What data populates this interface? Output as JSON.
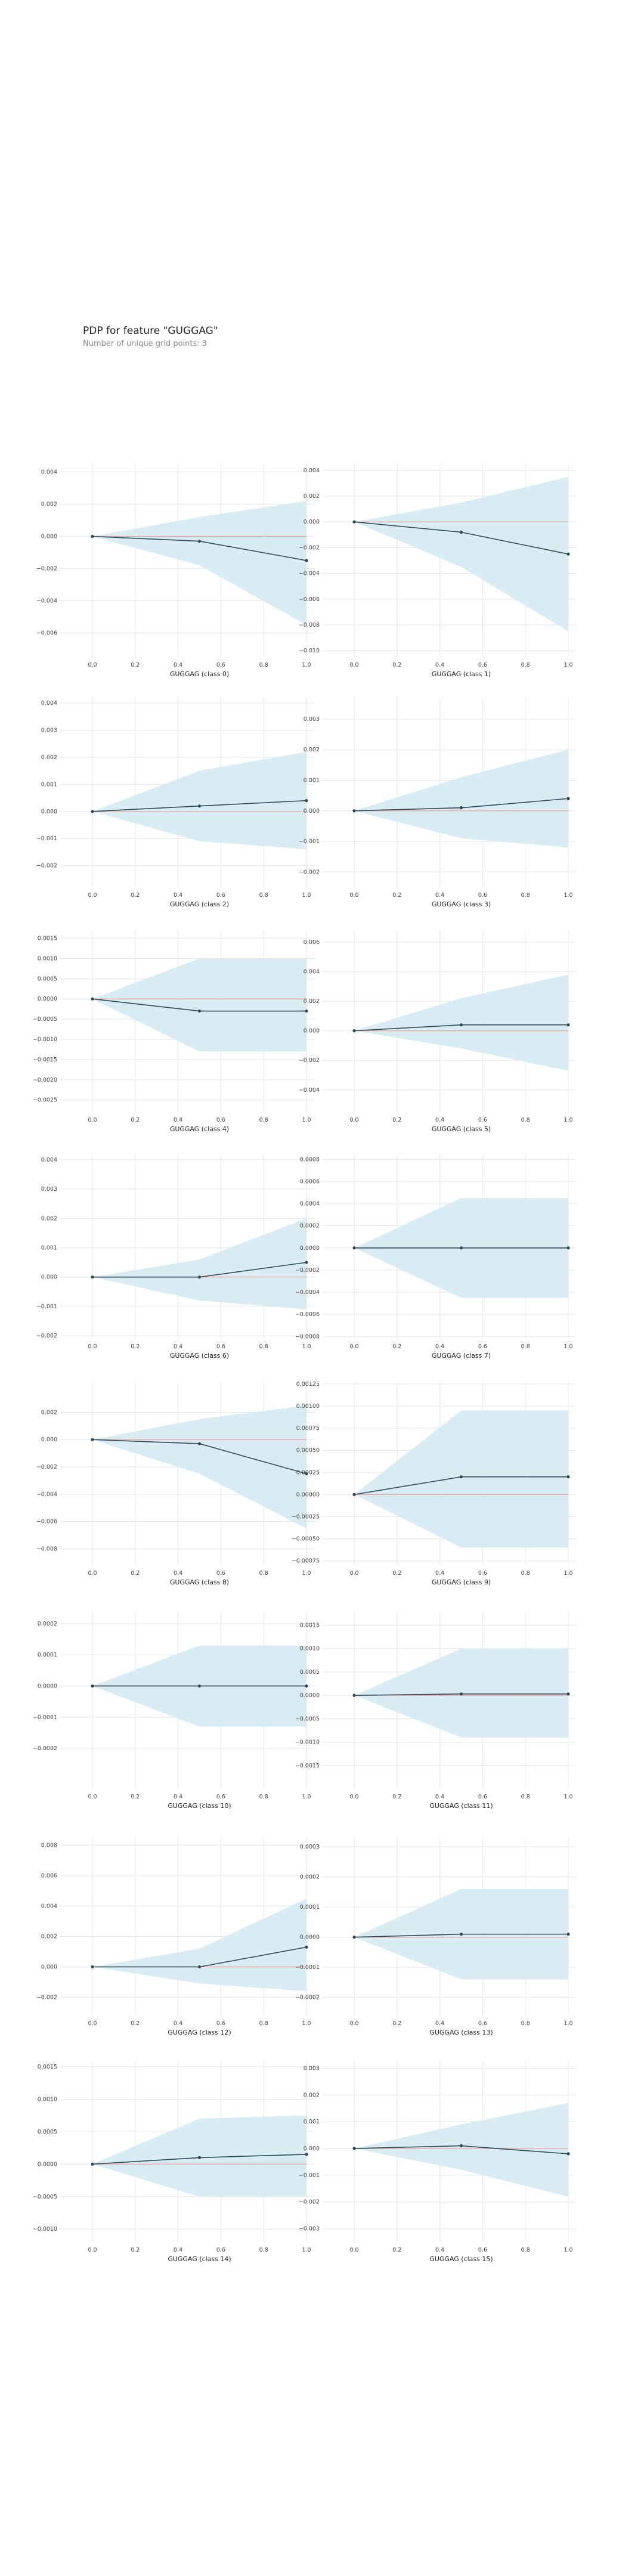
{
  "header": {
    "title": "PDP for feature \"GUGGAG\"",
    "subtitle": "Number of unique grid points: 3"
  },
  "colors": {
    "band": "#d5eaf2",
    "line": "#2e4a57",
    "zero": "#e8a59a",
    "grid": "#e6e6e6"
  },
  "chart_data": [
    {
      "type": "line",
      "xlabel": "GUGGAG (class 0)",
      "ylim": [
        -0.0075,
        0.0045
      ],
      "yticks": [
        0.004,
        0.002,
        0.0,
        -0.002,
        -0.004,
        -0.006
      ],
      "yticklabels": [
        "0.004",
        "0.002",
        "0.000",
        "−0.002",
        "−0.004",
        "−0.006"
      ],
      "xticks": [
        0.0,
        0.2,
        0.4,
        0.6,
        0.8,
        1.0
      ],
      "xticklabels": [
        "0.0",
        "0.2",
        "0.4",
        "0.6",
        "0.8",
        "1.0"
      ],
      "x": [
        0.0,
        0.5,
        1.0
      ],
      "y": [
        0.0,
        -0.0003,
        -0.0015
      ],
      "upper": [
        0.0,
        0.0012,
        0.0022
      ],
      "lower": [
        0.0,
        -0.0018,
        -0.0055
      ]
    },
    {
      "type": "line",
      "xlabel": "GUGGAG (class 1)",
      "ylim": [
        -0.0105,
        0.0045
      ],
      "yticks": [
        0.004,
        0.002,
        0.0,
        -0.002,
        -0.004,
        -0.006,
        -0.008,
        -0.01
      ],
      "yticklabels": [
        "0.004",
        "0.002",
        "0.000",
        "−0.002",
        "−0.004",
        "−0.006",
        "−0.008",
        "−0.010"
      ],
      "xticks": [
        0.0,
        0.2,
        0.4,
        0.6,
        0.8,
        1.0
      ],
      "xticklabels": [
        "0.0",
        "0.2",
        "0.4",
        "0.6",
        "0.8",
        "1.0"
      ],
      "x": [
        0.0,
        0.5,
        1.0
      ],
      "y": [
        0.0,
        -0.0008,
        -0.0025
      ],
      "upper": [
        0.0,
        0.0015,
        0.0035
      ],
      "lower": [
        0.0,
        -0.0035,
        -0.0085
      ]
    },
    {
      "type": "line",
      "xlabel": "GUGGAG (class 2)",
      "ylim": [
        -0.0028,
        0.0042
      ],
      "yticks": [
        0.004,
        0.003,
        0.002,
        0.001,
        0.0,
        -0.001,
        -0.002
      ],
      "yticklabels": [
        "0.004",
        "0.003",
        "0.002",
        "0.001",
        "0.000",
        "−0.001",
        "−0.002"
      ],
      "xticks": [
        0.0,
        0.2,
        0.4,
        0.6,
        0.8,
        1.0
      ],
      "xticklabels": [
        "0.0",
        "0.2",
        "0.4",
        "0.6",
        "0.8",
        "1.0"
      ],
      "x": [
        0.0,
        0.5,
        1.0
      ],
      "y": [
        0.0,
        0.0002,
        0.0004
      ],
      "upper": [
        0.0,
        0.0015,
        0.0022
      ],
      "lower": [
        0.0,
        -0.0011,
        -0.0014
      ]
    },
    {
      "type": "line",
      "xlabel": "GUGGAG (class 3)",
      "ylim": [
        -0.0025,
        0.0037
      ],
      "yticks": [
        0.003,
        0.002,
        0.001,
        0.0,
        -0.001,
        -0.002
      ],
      "yticklabels": [
        "0.003",
        "0.002",
        "0.001",
        "0.000",
        "−0.001",
        "−0.002"
      ],
      "xticks": [
        0.0,
        0.2,
        0.4,
        0.6,
        0.8,
        1.0
      ],
      "xticklabels": [
        "0.0",
        "0.2",
        "0.4",
        "0.6",
        "0.8",
        "1.0"
      ],
      "x": [
        0.0,
        0.5,
        1.0
      ],
      "y": [
        0.0,
        0.0001,
        0.0004
      ],
      "upper": [
        0.0,
        0.0011,
        0.002
      ],
      "lower": [
        0.0,
        -0.0009,
        -0.0012
      ]
    },
    {
      "type": "line",
      "xlabel": "GUGGAG (class 4)",
      "ylim": [
        -0.0028,
        0.0017
      ],
      "yticks": [
        0.0015,
        0.001,
        0.0005,
        0.0,
        -0.0005,
        -0.001,
        -0.0015,
        -0.002,
        -0.0025
      ],
      "yticklabels": [
        "0.0015",
        "0.0010",
        "0.0005",
        "0.0000",
        "−0.0005",
        "−0.0010",
        "−0.0015",
        "−0.0020",
        "−0.0025"
      ],
      "xticks": [
        0.0,
        0.2,
        0.4,
        0.6,
        0.8,
        1.0
      ],
      "xticklabels": [
        "0.0",
        "0.2",
        "0.4",
        "0.6",
        "0.8",
        "1.0"
      ],
      "x": [
        0.0,
        0.5,
        1.0
      ],
      "y": [
        0.0,
        -0.0003,
        -0.0003
      ],
      "upper": [
        0.0,
        0.001,
        0.001
      ],
      "lower": [
        0.0,
        -0.0013,
        -0.0013
      ]
    },
    {
      "type": "line",
      "xlabel": "GUGGAG (class 5)",
      "ylim": [
        -0.0055,
        0.0068
      ],
      "yticks": [
        0.006,
        0.004,
        0.002,
        0.0,
        -0.002,
        -0.004
      ],
      "yticklabels": [
        "0.006",
        "0.004",
        "0.002",
        "0.000",
        "−0.002",
        "−0.004"
      ],
      "xticks": [
        0.0,
        0.2,
        0.4,
        0.6,
        0.8,
        1.0
      ],
      "xticklabels": [
        "0.0",
        "0.2",
        "0.4",
        "0.6",
        "0.8",
        "1.0"
      ],
      "x": [
        0.0,
        0.5,
        1.0
      ],
      "y": [
        0.0,
        0.0004,
        0.0004
      ],
      "upper": [
        0.0,
        0.0022,
        0.0038
      ],
      "lower": [
        0.0,
        -0.0012,
        -0.0027
      ]
    },
    {
      "type": "line",
      "xlabel": "GUGGAG (class 6)",
      "ylim": [
        -0.0021,
        0.0042
      ],
      "yticks": [
        0.004,
        0.003,
        0.002,
        0.001,
        0.0,
        -0.001,
        -0.002
      ],
      "yticklabels": [
        "0.004",
        "0.003",
        "0.002",
        "0.001",
        "0.000",
        "−0.001",
        "−0.002"
      ],
      "xticks": [
        0.0,
        0.2,
        0.4,
        0.6,
        0.8,
        1.0
      ],
      "xticklabels": [
        "0.0",
        "0.2",
        "0.4",
        "0.6",
        "0.8",
        "1.0"
      ],
      "x": [
        0.0,
        0.5,
        1.0
      ],
      "y": [
        0.0,
        0.0,
        0.0005
      ],
      "upper": [
        0.0,
        0.0006,
        0.002
      ],
      "lower": [
        0.0,
        -0.0008,
        -0.0011
      ]
    },
    {
      "type": "line",
      "xlabel": "GUGGAG (class 7)",
      "ylim": [
        -0.00082,
        0.00085
      ],
      "yticks": [
        0.0008,
        0.0006,
        0.0004,
        0.0002,
        0.0,
        -0.0002,
        -0.0004,
        -0.0006,
        -0.0008
      ],
      "yticklabels": [
        "0.0008",
        "0.0006",
        "0.0004",
        "0.0002",
        "0.0000",
        "−0.0002",
        "−0.0004",
        "−0.0006",
        "−0.0008"
      ],
      "xticks": [
        0.0,
        0.2,
        0.4,
        0.6,
        0.8,
        1.0
      ],
      "xticklabels": [
        "0.0",
        "0.2",
        "0.4",
        "0.6",
        "0.8",
        "1.0"
      ],
      "x": [
        0.0,
        0.5,
        1.0
      ],
      "y": [
        0.0,
        0.0,
        0.0
      ],
      "upper": [
        0.0,
        0.00045,
        0.00045
      ],
      "lower": [
        0.0,
        -0.00045,
        -0.00045
      ]
    },
    {
      "type": "line",
      "xlabel": "GUGGAG (class 8)",
      "ylim": [
        -0.0092,
        0.0042
      ],
      "yticks": [
        0.002,
        0.0,
        -0.002,
        -0.004,
        -0.006,
        -0.008
      ],
      "yticklabels": [
        "0.002",
        "0.000",
        "−0.002",
        "−0.004",
        "−0.006",
        "−0.008"
      ],
      "xticks": [
        0.0,
        0.2,
        0.4,
        0.6,
        0.8,
        1.0
      ],
      "xticklabels": [
        "0.0",
        "0.2",
        "0.4",
        "0.6",
        "0.8",
        "1.0"
      ],
      "x": [
        0.0,
        0.5,
        1.0
      ],
      "y": [
        0.0,
        -0.0003,
        -0.0025
      ],
      "upper": [
        0.0,
        0.0015,
        0.0025
      ],
      "lower": [
        0.0,
        -0.0025,
        -0.0065
      ]
    },
    {
      "type": "line",
      "xlabel": "GUGGAG (class 9)",
      "ylim": [
        -0.0008,
        0.00127
      ],
      "yticks": [
        0.00125,
        0.001,
        0.00075,
        0.0005,
        0.00025,
        0.0,
        -0.00025,
        -0.0005,
        -0.00075
      ],
      "yticklabels": [
        "0.00125",
        "0.00100",
        "0.00075",
        "0.00050",
        "0.00025",
        "0.00000",
        "−0.00025",
        "−0.00050",
        "−0.00075"
      ],
      "xticks": [
        0.0,
        0.2,
        0.4,
        0.6,
        0.8,
        1.0
      ],
      "xticklabels": [
        "0.0",
        "0.2",
        "0.4",
        "0.6",
        "0.8",
        "1.0"
      ],
      "x": [
        0.0,
        0.5,
        1.0
      ],
      "y": [
        0.0,
        0.0002,
        0.0002
      ],
      "upper": [
        0.0,
        0.00095,
        0.00095
      ],
      "lower": [
        0.0,
        -0.0006,
        -0.0006
      ]
    },
    {
      "type": "line",
      "xlabel": "GUGGAG (class 10)",
      "ylim": [
        -0.00033,
        0.00024
      ],
      "yticks": [
        0.0002,
        0.0001,
        0.0,
        -0.0001,
        -0.0002
      ],
      "yticklabels": [
        "0.0002",
        "0.0001",
        "0.0000",
        "−0.0001",
        "−0.0002"
      ],
      "xticks": [
        0.0,
        0.2,
        0.4,
        0.6,
        0.8,
        1.0
      ],
      "xticklabels": [
        "0.0",
        "0.2",
        "0.4",
        "0.6",
        "0.8",
        "1.0"
      ],
      "x": [
        0.0,
        0.5,
        1.0
      ],
      "y": [
        0.0,
        0.0,
        0.0
      ],
      "upper": [
        0.0,
        0.00013,
        0.00013
      ],
      "lower": [
        0.0,
        -0.00013,
        -0.00013
      ]
    },
    {
      "type": "line",
      "xlabel": "GUGGAG (class 11)",
      "ylim": [
        -0.002,
        0.0018
      ],
      "yticks": [
        0.0015,
        0.001,
        0.0005,
        0.0,
        -0.0005,
        -0.001,
        -0.0015
      ],
      "yticklabels": [
        "0.0015",
        "0.0010",
        "0.0005",
        "0.0000",
        "−0.0005",
        "−0.0010",
        "−0.0015"
      ],
      "xticks": [
        0.0,
        0.2,
        0.4,
        0.6,
        0.8,
        1.0
      ],
      "xticklabels": [
        "0.0",
        "0.2",
        "0.4",
        "0.6",
        "0.8",
        "1.0"
      ],
      "x": [
        0.0,
        0.5,
        1.0
      ],
      "y": [
        0.0,
        3e-05,
        3e-05
      ],
      "upper": [
        0.0,
        0.001,
        0.001
      ],
      "lower": [
        0.0,
        -0.0009,
        -0.0009
      ]
    },
    {
      "type": "line",
      "xlabel": "GUGGAG (class 12)",
      "ylim": [
        -0.0032,
        0.0085
      ],
      "yticks": [
        0.008,
        0.006,
        0.004,
        0.002,
        0.0,
        -0.002
      ],
      "yticklabels": [
        "0.008",
        "0.006",
        "0.004",
        "0.002",
        "0.000",
        "−0.002"
      ],
      "xticks": [
        0.0,
        0.2,
        0.4,
        0.6,
        0.8,
        1.0
      ],
      "xticklabels": [
        "0.0",
        "0.2",
        "0.4",
        "0.6",
        "0.8",
        "1.0"
      ],
      "x": [
        0.0,
        0.5,
        1.0
      ],
      "y": [
        0.0,
        0.0,
        0.0013
      ],
      "upper": [
        0.0,
        0.0012,
        0.0045
      ],
      "lower": [
        0.0,
        -0.0011,
        -0.0016
      ]
    },
    {
      "type": "line",
      "xlabel": "GUGGAG (class 13)",
      "ylim": [
        -0.00026,
        0.00033
      ],
      "yticks": [
        0.0003,
        0.0002,
        0.0001,
        0.0,
        -0.0001,
        -0.0002
      ],
      "yticklabels": [
        "0.0003",
        "0.0002",
        "0.0001",
        "0.0000",
        "−0.0001",
        "−0.0002"
      ],
      "xticks": [
        0.0,
        0.2,
        0.4,
        0.6,
        0.8,
        1.0
      ],
      "xticklabels": [
        "0.0",
        "0.2",
        "0.4",
        "0.6",
        "0.8",
        "1.0"
      ],
      "x": [
        0.0,
        0.5,
        1.0
      ],
      "y": [
        0.0,
        1e-05,
        1e-05
      ],
      "upper": [
        0.0,
        0.00016,
        0.00016
      ],
      "lower": [
        0.0,
        -0.00014,
        -0.00014
      ]
    },
    {
      "type": "line",
      "xlabel": "GUGGAG (class 14)",
      "ylim": [
        -0.0012,
        0.0016
      ],
      "yticks": [
        0.0015,
        0.001,
        0.0005,
        0.0,
        -0.0005,
        -0.001
      ],
      "yticklabels": [
        "0.0015",
        "0.0010",
        "0.0005",
        "0.0000",
        "−0.0005",
        "−0.0010"
      ],
      "xticks": [
        0.0,
        0.2,
        0.4,
        0.6,
        0.8,
        1.0
      ],
      "xticklabels": [
        "0.0",
        "0.2",
        "0.4",
        "0.6",
        "0.8",
        "1.0"
      ],
      "x": [
        0.0,
        0.5,
        1.0
      ],
      "y": [
        0.0,
        0.0001,
        0.00015
      ],
      "upper": [
        0.0,
        0.0007,
        0.00075
      ],
      "lower": [
        0.0,
        -0.0005,
        -0.0005
      ]
    },
    {
      "type": "line",
      "xlabel": "GUGGAG (class 15)",
      "ylim": [
        -0.0035,
        0.0033
      ],
      "yticks": [
        0.003,
        0.002,
        0.001,
        0.0,
        -0.001,
        -0.002,
        -0.003
      ],
      "yticklabels": [
        "0.003",
        "0.002",
        "0.001",
        "0.000",
        "−0.001",
        "−0.002",
        "−0.003"
      ],
      "xticks": [
        0.0,
        0.2,
        0.4,
        0.6,
        0.8,
        1.0
      ],
      "xticklabels": [
        "0.0",
        "0.2",
        "0.4",
        "0.6",
        "0.8",
        "1.0"
      ],
      "x": [
        0.0,
        0.5,
        1.0
      ],
      "y": [
        0.0,
        0.0001,
        -0.0002
      ],
      "upper": [
        0.0,
        0.0009,
        0.0017
      ],
      "lower": [
        0.0,
        -0.0008,
        -0.0018
      ]
    }
  ]
}
